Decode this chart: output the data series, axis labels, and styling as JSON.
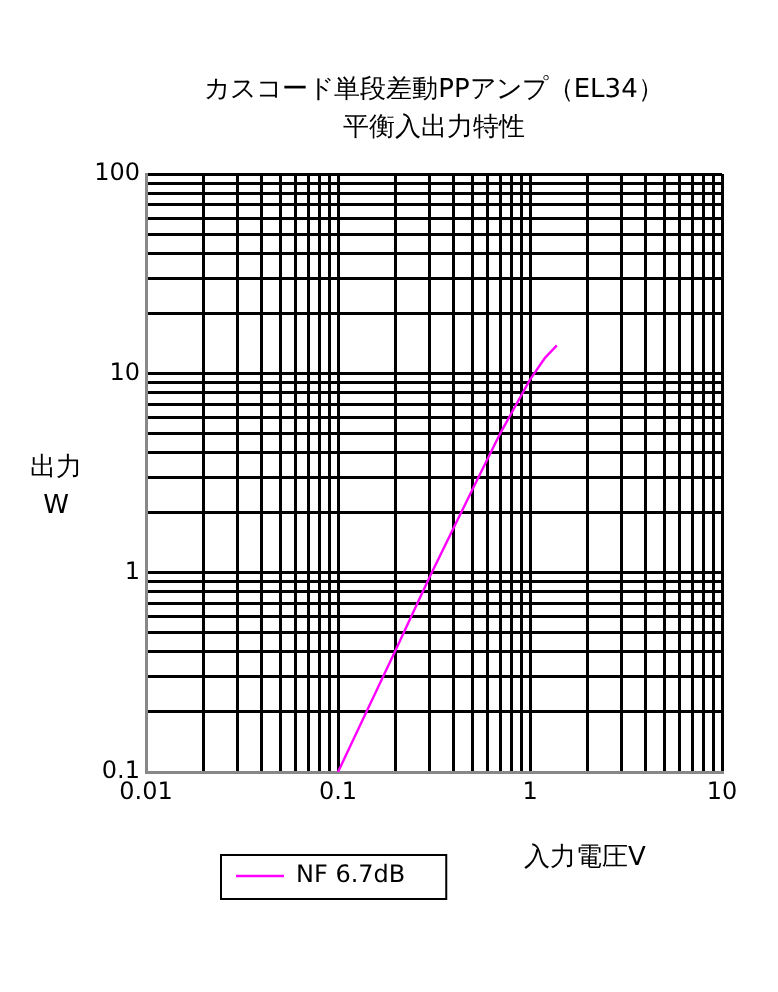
{
  "chart_data": {
    "type": "line",
    "title": "カスコード単段差動PPアンプ（EL34）",
    "subtitle": "平衡入出力特性",
    "xlabel": "入力電圧V",
    "ylabel": "出力\nW",
    "x": [
      0.1,
      0.2,
      0.3,
      0.5,
      0.7,
      1,
      1.2,
      1.38
    ],
    "series": [
      {
        "name": "NF 6.7dB",
        "color": "#ff00ff",
        "values": [
          0.1,
          0.41,
          0.95,
          2.6,
          5,
          9.3,
          12,
          13.8
        ]
      }
    ],
    "log": "xy",
    "xlim": [
      0.01,
      10
    ],
    "ylim": [
      0.1,
      100
    ],
    "xticks": [
      0.01,
      0.1,
      1,
      10
    ],
    "yticks": [
      0.1,
      1,
      10,
      100
    ],
    "grid": true,
    "legend": "bottom left",
    "marker": "none",
    "line_style": "solid"
  }
}
